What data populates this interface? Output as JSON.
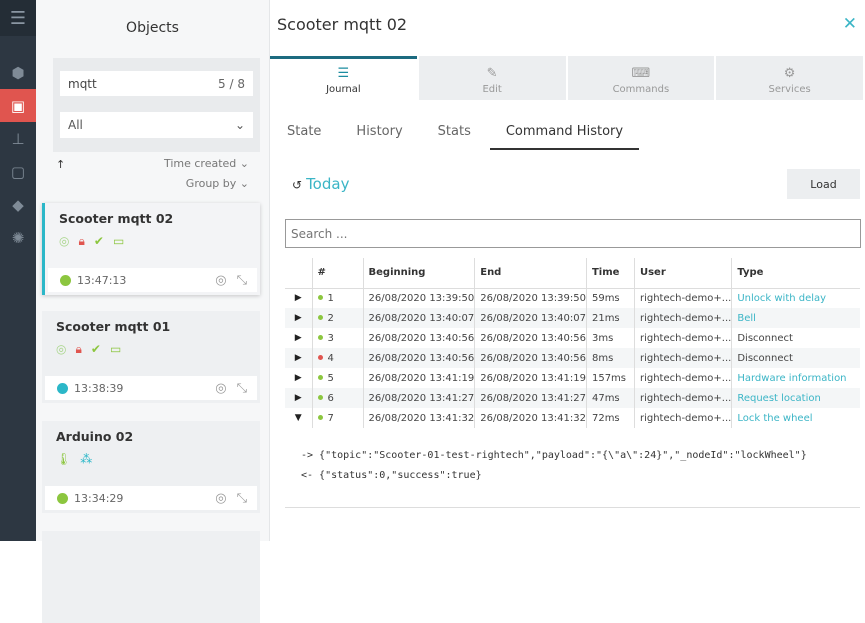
{
  "nav": {
    "items": [
      "cube-icon",
      "object-icon",
      "hierarchy-icon",
      "code-icon",
      "tag-icon",
      "globe-icon"
    ],
    "active": 1
  },
  "objects": {
    "title": "Objects",
    "search_value": "mqtt",
    "count": "5 / 8",
    "filter": "All",
    "sort_label": "Time created",
    "group_label": "Group by",
    "cards": [
      {
        "name": "Scooter mqtt 02",
        "time": "13:47:13",
        "status_color": "#8cc63f",
        "selected": true
      },
      {
        "name": "Scooter mqtt 01",
        "time": "13:38:39",
        "status_color": "#2bb7c8"
      },
      {
        "name": "Arduino 02",
        "time": "13:34:29",
        "status_color": "#8cc63f"
      }
    ]
  },
  "main": {
    "title": "Scooter mqtt 02",
    "tabs": [
      {
        "label": "Journal"
      },
      {
        "label": "Edit"
      },
      {
        "label": "Commands"
      },
      {
        "label": "Services"
      }
    ],
    "subtabs": [
      "State",
      "History",
      "Stats",
      "Command History"
    ],
    "period": "Today",
    "load_label": "Load",
    "search_placeholder": "Search ...",
    "columns": [
      "#",
      "Beginning",
      "End",
      "Time",
      "User",
      "Type"
    ],
    "rows": [
      {
        "n": "1",
        "status": "ok",
        "begin": "26/08/2020 13:39:50",
        "end": "26/08/2020 13:39:50",
        "time": "59ms",
        "user": "rightech-demo+...",
        "type": "Unlock with delay",
        "link": true
      },
      {
        "n": "2",
        "status": "ok",
        "begin": "26/08/2020 13:40:07",
        "end": "26/08/2020 13:40:07",
        "time": "21ms",
        "user": "rightech-demo+...",
        "type": "Bell",
        "link": true
      },
      {
        "n": "3",
        "status": "ok",
        "begin": "26/08/2020 13:40:56",
        "end": "26/08/2020 13:40:56",
        "time": "3ms",
        "user": "rightech-demo+...",
        "type": "Disconnect",
        "link": false
      },
      {
        "n": "4",
        "status": "error",
        "begin": "26/08/2020 13:40:56",
        "end": "26/08/2020 13:40:56",
        "time": "8ms",
        "user": "rightech-demo+...",
        "type": "Disconnect",
        "link": false
      },
      {
        "n": "5",
        "status": "ok",
        "begin": "26/08/2020 13:41:19",
        "end": "26/08/2020 13:41:19",
        "time": "157ms",
        "user": "rightech-demo+...",
        "type": "Hardware information",
        "link": true
      },
      {
        "n": "6",
        "status": "ok",
        "begin": "26/08/2020 13:41:27",
        "end": "26/08/2020 13:41:27",
        "time": "47ms",
        "user": "rightech-demo+...",
        "type": "Request location",
        "link": true
      },
      {
        "n": "7",
        "status": "ok",
        "begin": "26/08/2020 13:41:32",
        "end": "26/08/2020 13:41:32",
        "time": "72ms",
        "user": "rightech-demo+...",
        "type": "Lock the wheel",
        "link": true,
        "expanded": true
      }
    ],
    "detail_request": "-> {\"topic\":\"Scooter-01-test-rightech\",\"payload\":\"{\\\"a\\\":24}\",\"_nodeId\":\"lockWheel\"}",
    "detail_response": "<- {\"status\":0,\"success\":true}"
  },
  "colors": {
    "accent": "#3bb5c6",
    "ok": "#8cc63f",
    "error": "#e0554f"
  }
}
